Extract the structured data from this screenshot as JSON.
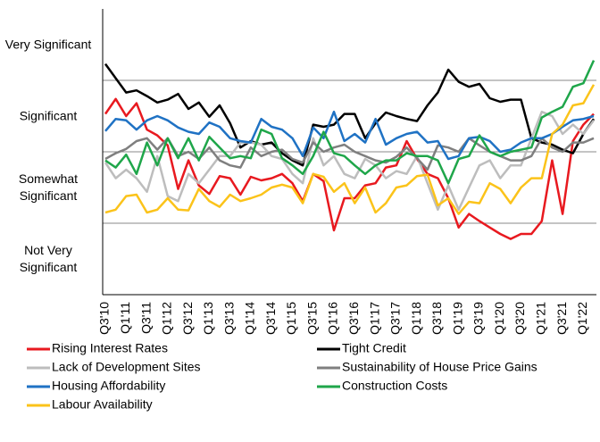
{
  "chart_data": {
    "type": "line",
    "categories": [
      "Q3'10",
      null,
      "Q1'11",
      null,
      "Q3'11",
      null,
      "Q1'12",
      null,
      "Q3'12",
      null,
      "Q1'13",
      null,
      "Q3'13",
      null,
      "Q1'14",
      null,
      "Q3'14",
      null,
      "Q1'15",
      null,
      "Q3'15",
      null,
      "Q1'16",
      null,
      "Q3'16",
      null,
      "Q1'17",
      null,
      "Q3'17",
      null,
      "Q1'18",
      null,
      "Q3'18",
      null,
      "Q1'19",
      null,
      "Q3'19",
      null,
      "Q1'20",
      null,
      "Q3'20",
      null,
      "Q1'21",
      null,
      "Q3'21",
      null,
      "Q1'22",
      null
    ],
    "ylim": [
      0.5,
      4.5
    ],
    "yticks": [
      {
        "value": 4,
        "label": "Very Significant"
      },
      {
        "value": 3,
        "label": "Significant"
      },
      {
        "value": 2,
        "label": "Somewhat Significant"
      },
      {
        "value": 1,
        "label": "Not Very Significant"
      }
    ],
    "hlines": [
      3.5,
      2.5,
      1.5
    ],
    "series": [
      {
        "name": "Rising Interest Rates",
        "color": "#e8191f",
        "values": [
          3.03,
          3.24,
          3.0,
          3.18,
          2.81,
          2.73,
          2.59,
          1.98,
          2.38,
          2.03,
          1.91,
          2.16,
          2.13,
          1.9,
          2.15,
          2.1,
          2.13,
          2.19,
          2.06,
          1.81,
          2.19,
          2.09,
          1.4,
          1.85,
          1.85,
          2.03,
          2.06,
          2.28,
          2.31,
          2.65,
          2.4,
          2.19,
          2.13,
          1.85,
          1.44,
          1.63,
          1.53,
          1.44,
          1.35,
          1.28,
          1.35,
          1.35,
          1.53,
          2.38,
          1.63,
          2.65,
          2.88,
          3.03
        ]
      },
      {
        "name": "Tight Credit",
        "color": "#000000",
        "values": [
          3.73,
          3.53,
          3.33,
          3.36,
          3.28,
          3.19,
          3.23,
          3.31,
          3.1,
          3.19,
          2.99,
          3.15,
          2.9,
          2.56,
          2.65,
          2.6,
          2.63,
          2.48,
          2.38,
          2.31,
          2.88,
          2.85,
          2.88,
          3.03,
          3.03,
          2.69,
          2.9,
          3.05,
          3.0,
          2.96,
          2.93,
          3.15,
          3.33,
          3.65,
          3.48,
          3.41,
          3.45,
          3.25,
          3.2,
          3.23,
          3.23,
          2.69,
          2.63,
          2.6,
          2.53,
          2.48,
          2.75,
          2.96
        ]
      },
      {
        "name": "Lack of Development Sites",
        "color": "#bdbdbd",
        "values": [
          2.35,
          2.13,
          2.25,
          2.13,
          1.94,
          2.44,
          1.88,
          1.81,
          2.19,
          2.06,
          2.25,
          2.44,
          2.44,
          2.63,
          2.63,
          2.6,
          2.44,
          2.4,
          2.19,
          2.06,
          2.69,
          2.31,
          2.44,
          2.19,
          2.13,
          2.4,
          2.31,
          2.13,
          2.23,
          2.19,
          2.44,
          2.06,
          1.69,
          2.03,
          1.69,
          2.0,
          2.31,
          2.38,
          2.13,
          2.31,
          2.31,
          2.69,
          3.06,
          3.0,
          2.75,
          2.88,
          2.75,
          2.94
        ]
      },
      {
        "name": "Sustainability of House Price Gains",
        "color": "#7f7f7f",
        "values": [
          2.4,
          2.48,
          2.54,
          2.65,
          2.69,
          2.53,
          2.69,
          2.44,
          2.5,
          2.4,
          2.56,
          2.38,
          2.31,
          2.28,
          2.56,
          2.44,
          2.5,
          2.53,
          2.4,
          2.35,
          2.63,
          2.5,
          2.56,
          2.6,
          2.5,
          2.44,
          2.38,
          2.35,
          2.43,
          2.56,
          2.41,
          2.25,
          2.59,
          2.56,
          2.5,
          2.69,
          2.59,
          2.5,
          2.44,
          2.38,
          2.38,
          2.44,
          2.69,
          2.56,
          2.5,
          2.63,
          2.63,
          2.69
        ]
      },
      {
        "name": "Housing Affordability",
        "color": "#1f72c4",
        "values": [
          2.79,
          2.96,
          2.94,
          2.81,
          2.94,
          3.0,
          2.94,
          2.84,
          2.78,
          2.75,
          2.91,
          2.85,
          2.69,
          2.65,
          2.63,
          2.96,
          2.85,
          2.81,
          2.69,
          2.44,
          2.84,
          2.69,
          3.06,
          2.65,
          2.75,
          2.63,
          2.96,
          2.6,
          2.69,
          2.75,
          2.78,
          2.63,
          2.65,
          2.4,
          2.44,
          2.69,
          2.71,
          2.65,
          2.5,
          2.53,
          2.63,
          2.69,
          2.69,
          2.75,
          2.85,
          2.94,
          2.96,
          3.0
        ]
      },
      {
        "name": "Construction Costs",
        "color": "#1fa64a",
        "values": [
          2.38,
          2.28,
          2.46,
          2.19,
          2.63,
          2.31,
          2.69,
          2.41,
          2.69,
          2.38,
          2.71,
          2.56,
          2.41,
          2.44,
          2.41,
          2.81,
          2.75,
          2.41,
          2.31,
          2.19,
          2.44,
          2.78,
          2.48,
          2.44,
          2.31,
          2.19,
          2.31,
          2.38,
          2.38,
          2.48,
          2.44,
          2.44,
          2.38,
          2.06,
          2.4,
          2.44,
          2.73,
          2.5,
          2.44,
          2.5,
          2.53,
          2.56,
          2.98,
          3.06,
          3.13,
          3.41,
          3.46,
          3.78
        ]
      },
      {
        "name": "Labour Availability",
        "color": "#fbc31a",
        "values": [
          1.65,
          1.69,
          1.88,
          1.9,
          1.65,
          1.69,
          1.85,
          1.69,
          1.68,
          1.98,
          1.81,
          1.73,
          1.9,
          1.81,
          1.85,
          1.9,
          2.0,
          2.04,
          2.0,
          1.78,
          2.19,
          2.15,
          1.94,
          2.06,
          1.78,
          2.0,
          1.65,
          1.78,
          2.0,
          2.03,
          2.16,
          2.18,
          1.75,
          1.85,
          1.63,
          1.8,
          1.78,
          2.06,
          1.98,
          1.78,
          2.0,
          2.13,
          2.13,
          2.75,
          2.88,
          3.15,
          3.18,
          3.44
        ]
      }
    ]
  }
}
